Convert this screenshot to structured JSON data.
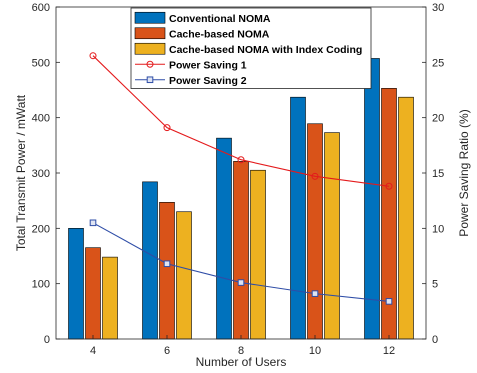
{
  "chart_data": {
    "type": "bar",
    "categories": [
      "4",
      "6",
      "8",
      "10",
      "12"
    ],
    "xlabel": "Number of Users",
    "ylabel": "Total Transmit Power / mWatt",
    "y2label": "Power Saving Ratio (%)",
    "ylim": [
      0,
      600
    ],
    "y2lim": [
      0,
      30
    ],
    "yticks": [
      0,
      100,
      200,
      300,
      400,
      500,
      600
    ],
    "y2ticks": [
      0,
      5,
      10,
      15,
      20,
      25,
      30
    ],
    "legend_position": "top-center",
    "grid": false,
    "series": [
      {
        "name": "Conventional NOMA",
        "kind": "bar",
        "axis": "left",
        "color": "#0072BD",
        "values": [
          200,
          284,
          363,
          437,
          507
        ]
      },
      {
        "name": "Cache-based NOMA",
        "kind": "bar",
        "axis": "left",
        "color": "#D95319",
        "values": [
          165,
          247,
          321,
          389,
          453
        ]
      },
      {
        "name": "Cache-based NOMA with Index Coding",
        "kind": "bar",
        "axis": "left",
        "color": "#EDB120",
        "values": [
          148,
          230,
          305,
          373,
          437
        ]
      },
      {
        "name": "Power Saving 1",
        "kind": "line",
        "axis": "right",
        "color": "#E41A1C",
        "marker": "circle",
        "values": [
          25.6,
          19.1,
          16.2,
          14.7,
          13.8
        ]
      },
      {
        "name": "Power Saving 2",
        "kind": "line",
        "axis": "right",
        "color": "#2E4DA7",
        "marker": "square",
        "values": [
          10.5,
          6.8,
          5.1,
          4.1,
          3.4
        ]
      }
    ]
  }
}
